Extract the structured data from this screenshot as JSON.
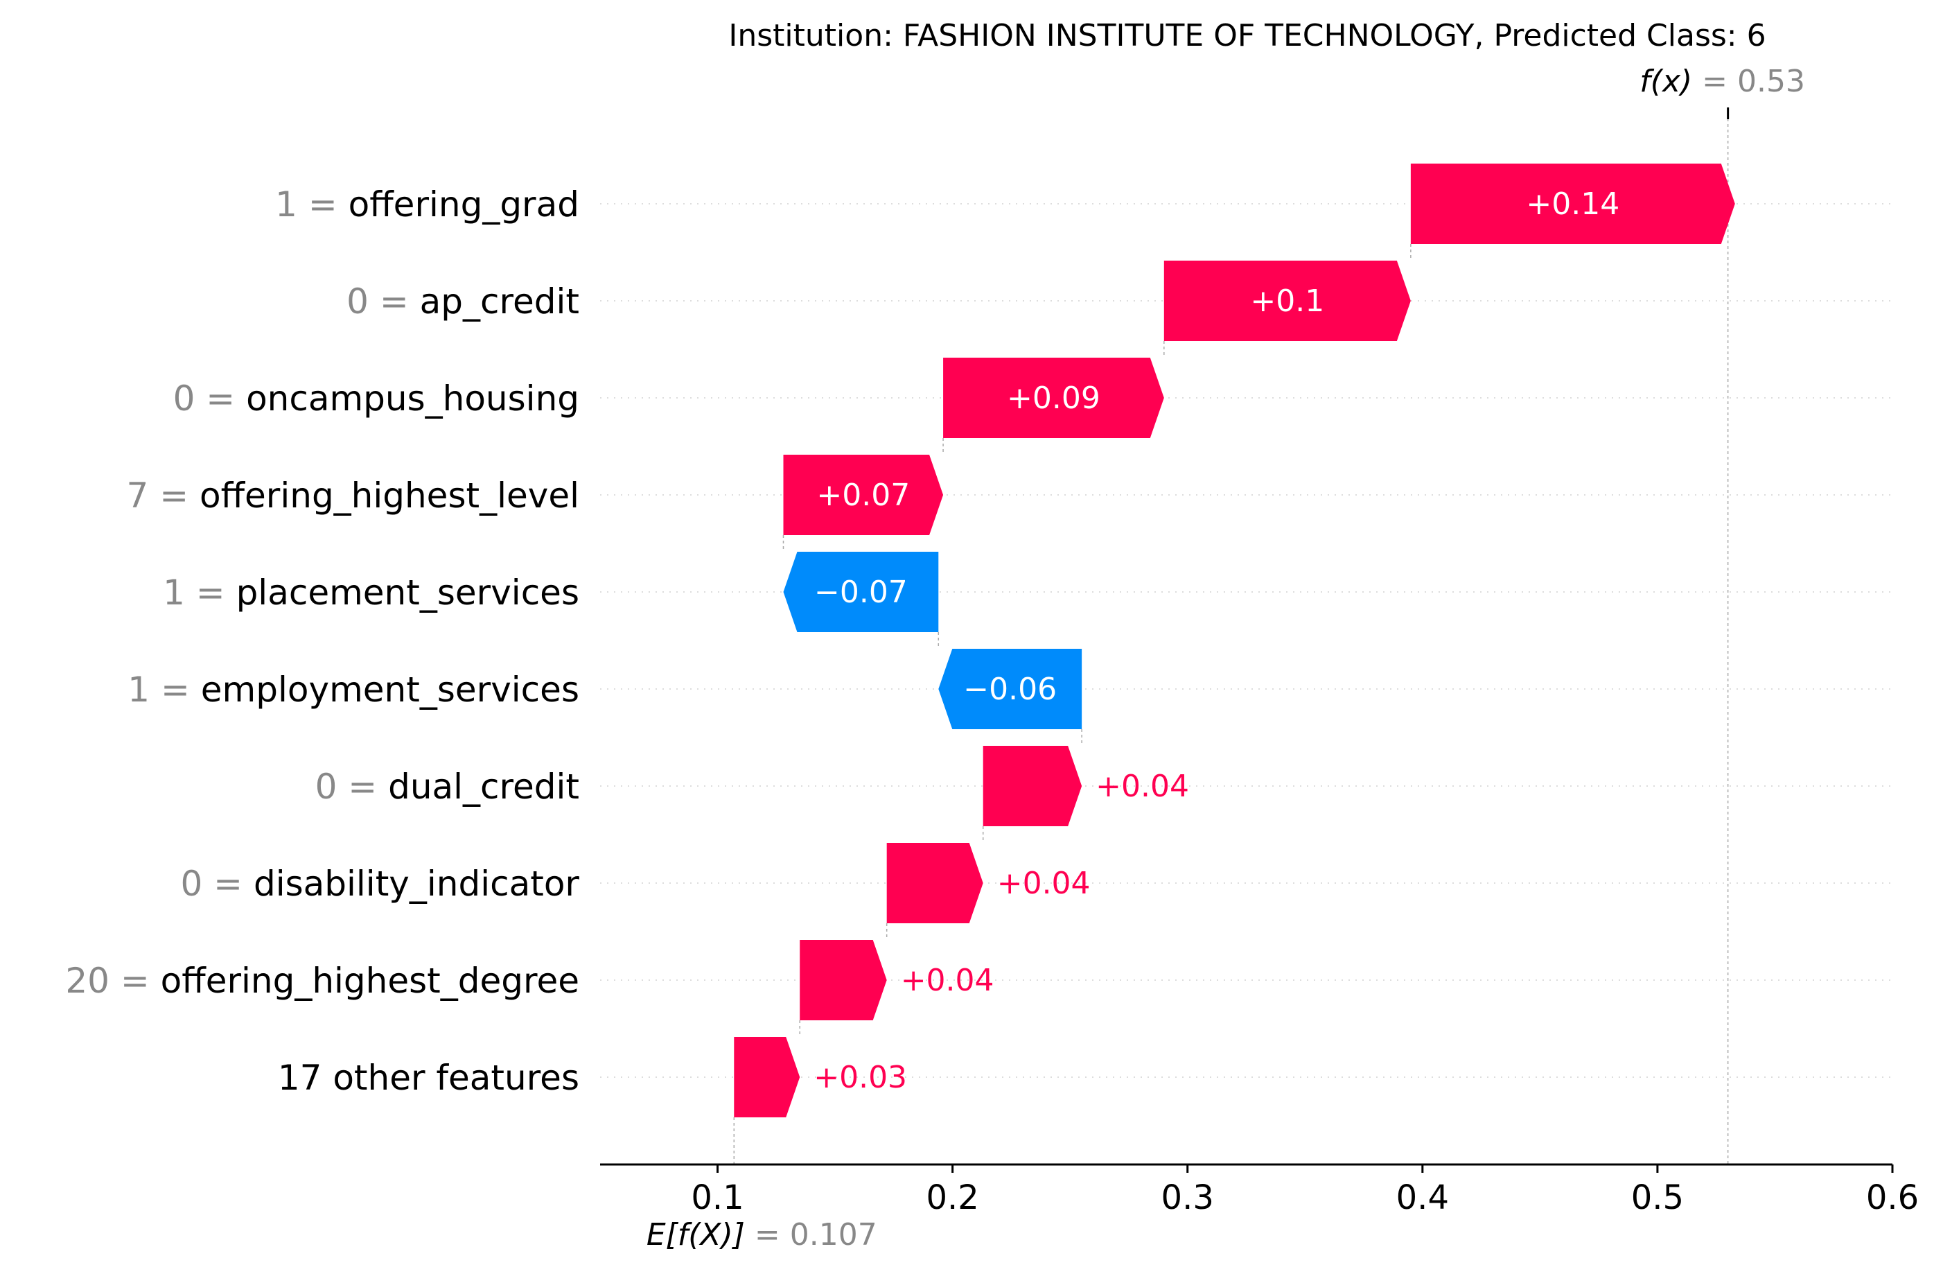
{
  "chart_data": {
    "type": "waterfall",
    "title": "Institution: FASHION INSTITUTE OF TECHNOLOGY, Predicted Class: 6",
    "base_value": 0.107,
    "base_value_text": "= 0.107",
    "base_label": "E[f(X)]",
    "output_value": 0.53,
    "output_value_text": "= 0.53",
    "output_label": "f(x)",
    "xlim": [
      0.05,
      0.6
    ],
    "xticks": [
      0.1,
      0.2,
      0.3,
      0.4,
      0.5,
      0.6
    ],
    "xtick_labels": [
      "0.1",
      "0.2",
      "0.3",
      "0.4",
      "0.5",
      "0.6"
    ],
    "colors": {
      "positive": "#ff0051",
      "negative": "#008bfb",
      "grid": "#cccccc"
    },
    "features": [
      {
        "value": "1",
        "name": "offering_grad",
        "contribution": 0.138,
        "label": "+0.14"
      },
      {
        "value": "0",
        "name": "ap_credit",
        "contribution": 0.105,
        "label": "+0.1"
      },
      {
        "value": "0",
        "name": "oncampus_housing",
        "contribution": 0.094,
        "label": "+0.09"
      },
      {
        "value": "7",
        "name": "offering_highest_level",
        "contribution": 0.068,
        "label": "+0.07"
      },
      {
        "value": "1",
        "name": "placement_services",
        "contribution": -0.066,
        "label": "−0.07"
      },
      {
        "value": "1",
        "name": "employment_services",
        "contribution": -0.061,
        "label": "−0.06"
      },
      {
        "value": "0",
        "name": "dual_credit",
        "contribution": 0.042,
        "label": "+0.04"
      },
      {
        "value": "0",
        "name": "disability_indicator",
        "contribution": 0.041,
        "label": "+0.04"
      },
      {
        "value": "20",
        "name": "offering_highest_degree",
        "contribution": 0.037,
        "label": "+0.04"
      },
      {
        "value": "",
        "name": "17 other features",
        "contribution": 0.028,
        "label": "+0.03"
      }
    ]
  }
}
